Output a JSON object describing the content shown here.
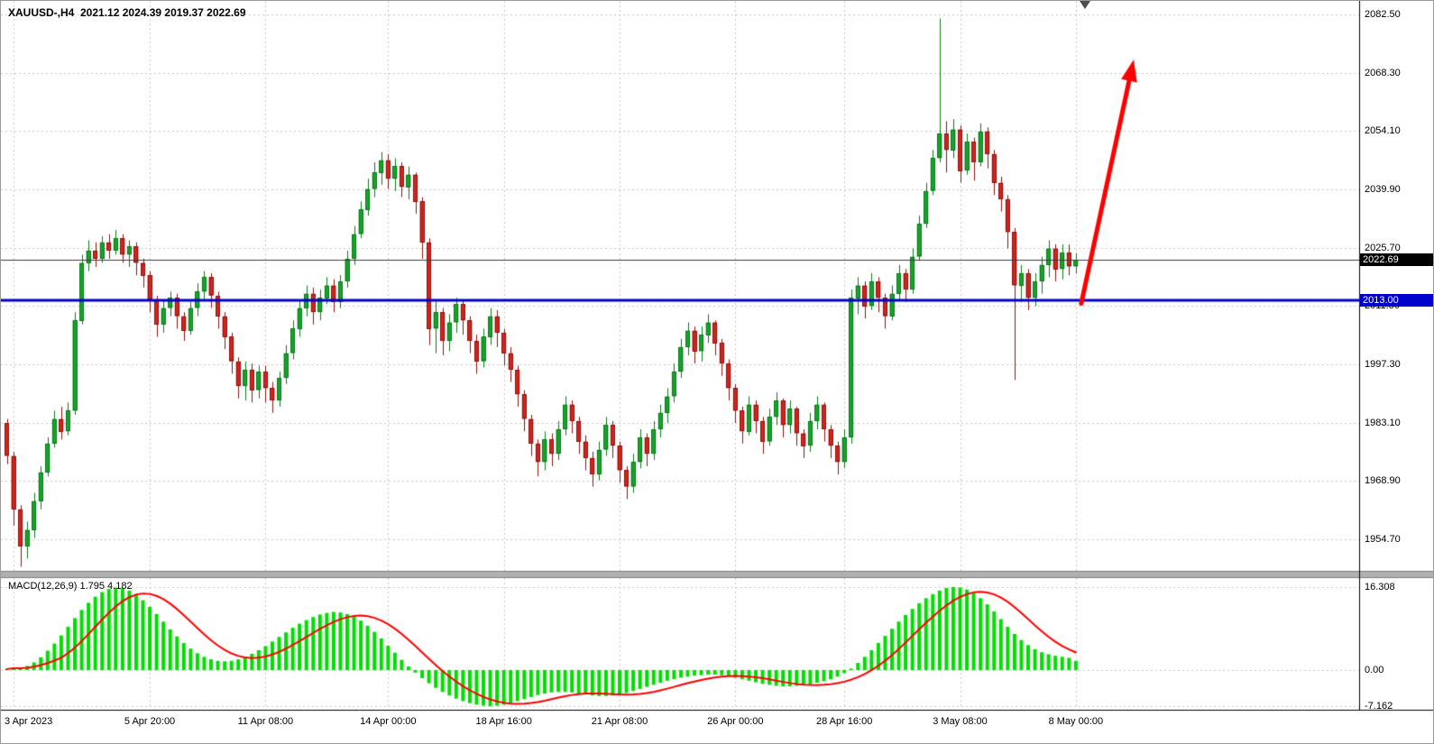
{
  "header": {
    "title_line": "XAUUSD-,H4  2021.12 2024.39 2019.37 2022.69"
  },
  "macd_panel": {
    "label": "MACD(12,26,9) 1.795 4.182"
  },
  "badges": {
    "current_price": "2022.69",
    "support_line": "2013.00"
  },
  "chart_data": [
    {
      "type": "candlestick",
      "symbol": "XAUUSD-",
      "timeframe": "H4",
      "title": "XAUUSD-,H4",
      "ohlc_display": {
        "open": 2021.12,
        "high": 2024.39,
        "low": 2019.37,
        "close": 2022.69
      },
      "y_axis": {
        "ticks": [
          2082.5,
          2068.3,
          2054.1,
          2039.9,
          2025.7,
          2011.5,
          1997.3,
          1983.1,
          1968.9,
          1954.7
        ],
        "grid": true
      },
      "x_axis": {
        "labels": [
          "3 Apr 2023",
          "5 Apr 20:00",
          "11 Apr 08:00",
          "14 Apr 00:00",
          "18 Apr 16:00",
          "21 Apr 08:00",
          "26 Apr 00:00",
          "28 Apr 16:00",
          "3 May 08:00",
          "8 May 00:00"
        ],
        "indices": [
          1,
          21,
          38,
          56,
          73,
          90,
          107,
          123,
          140,
          157
        ],
        "grid": true
      },
      "first_open": 1983.0,
      "bars_hlc": [
        [
          1984,
          1973,
          1975
        ],
        [
          1976,
          1958,
          1962
        ],
        [
          1963,
          1948,
          1953
        ],
        [
          1959,
          1950,
          1957
        ],
        [
          1966,
          1955,
          1964
        ],
        [
          1972.5,
          1962,
          1971
        ],
        [
          1979.5,
          1970,
          1978
        ],
        [
          1986,
          1977,
          1984
        ],
        [
          1987,
          1979,
          1981
        ],
        [
          1988,
          1980,
          1986
        ],
        [
          2010,
          1985,
          2008
        ],
        [
          2024,
          2007,
          2022
        ],
        [
          2027.5,
          2020,
          2025
        ],
        [
          2027,
          2021,
          2023
        ],
        [
          2028.5,
          2022,
          2027
        ],
        [
          2029,
          2023,
          2025
        ],
        [
          2030,
          2024,
          2028
        ],
        [
          2029,
          2022,
          2024
        ],
        [
          2027.5,
          2021,
          2026
        ],
        [
          2027,
          2019,
          2022
        ],
        [
          2023,
          2016,
          2019
        ],
        [
          2020,
          2010,
          2013
        ],
        [
          2014,
          2004,
          2007
        ],
        [
          2013,
          2005,
          2011
        ],
        [
          2015,
          2009,
          2013.5
        ],
        [
          2014.5,
          2006,
          2009
        ],
        [
          2010,
          2003,
          2005.5
        ],
        [
          2012.5,
          2004.5,
          2011
        ],
        [
          2017,
          2009,
          2015
        ],
        [
          2020,
          2013,
          2018.5
        ],
        [
          2019.5,
          2011,
          2014
        ],
        [
          2015,
          2006,
          2009
        ],
        [
          2010,
          2001,
          2004
        ],
        [
          2005,
          1995,
          1998
        ],
        [
          1999,
          1989,
          1992
        ],
        [
          1998,
          1988.5,
          1996
        ],
        [
          1997.5,
          1988,
          1991
        ],
        [
          1997,
          1989,
          1995.5
        ],
        [
          1997,
          1988,
          1991.5
        ],
        [
          1993,
          1985.5,
          1988.5
        ],
        [
          1995.5,
          1987,
          1994
        ],
        [
          2002,
          1992.5,
          2000
        ],
        [
          2008,
          1998.5,
          2006
        ],
        [
          2013,
          2004,
          2011
        ],
        [
          2016.5,
          2009,
          2014.5
        ],
        [
          2016,
          2007,
          2010
        ],
        [
          2015.5,
          2008,
          2013.5
        ],
        [
          2018.5,
          2012,
          2016.5
        ],
        [
          2018,
          2010,
          2012.5
        ],
        [
          2019,
          2011,
          2017.5
        ],
        [
          2025,
          2016,
          2023
        ],
        [
          2031,
          2021.5,
          2029
        ],
        [
          2037,
          2028,
          2035
        ],
        [
          2042.5,
          2033.5,
          2040
        ],
        [
          2046.5,
          2038,
          2044
        ],
        [
          2049,
          2041,
          2047
        ],
        [
          2048.5,
          2040,
          2042.5
        ],
        [
          2047.5,
          2039.5,
          2045.5
        ],
        [
          2046.5,
          2038,
          2040.5
        ],
        [
          2045.5,
          2037.5,
          2043.5
        ],
        [
          2044,
          2034,
          2037
        ],
        [
          2038,
          2023,
          2027
        ],
        [
          2028,
          2002,
          2006
        ],
        [
          2012.5,
          2000,
          2010
        ],
        [
          2011,
          1999.5,
          2003
        ],
        [
          2009.5,
          2000.5,
          2007.5
        ],
        [
          2013.5,
          2005,
          2012
        ],
        [
          2013,
          2004.5,
          2008
        ],
        [
          2009,
          2000,
          2003
        ],
        [
          2004.5,
          1995,
          1998
        ],
        [
          2006,
          1996.5,
          2004
        ],
        [
          2011,
          2002,
          2009
        ],
        [
          2010.5,
          2001.5,
          2005
        ],
        [
          2006,
          1997,
          2000
        ],
        [
          2001.5,
          1993,
          1996
        ],
        [
          1997,
          1987,
          1990
        ],
        [
          1991,
          1981,
          1984
        ],
        [
          1985,
          1975,
          1978
        ],
        [
          1979,
          1970,
          1973.5
        ],
        [
          1981,
          1971.5,
          1979
        ],
        [
          1980.5,
          1972.5,
          1975.5
        ],
        [
          1983.5,
          1974,
          1981.5
        ],
        [
          1989.5,
          1980,
          1987.5
        ],
        [
          1988.5,
          1980.5,
          1983.5
        ],
        [
          1984.5,
          1975.5,
          1978.5
        ],
        [
          1980,
          1971.5,
          1974.5
        ],
        [
          1976,
          1967.5,
          1970.5
        ],
        [
          1978.5,
          1969,
          1976.5
        ],
        [
          1984.5,
          1975,
          1982.5
        ],
        [
          1983.5,
          1974.5,
          1977.5
        ],
        [
          1978.5,
          1968.5,
          1971.5
        ],
        [
          1972.5,
          1964.5,
          1967.5
        ],
        [
          1975.5,
          1966,
          1973.5
        ],
        [
          1981.5,
          1972,
          1979.5
        ],
        [
          1980.5,
          1972.5,
          1975.5
        ],
        [
          1983.5,
          1974,
          1981.5
        ],
        [
          1987.5,
          1979.5,
          1985.5
        ],
        [
          1991.5,
          1983,
          1989.5
        ],
        [
          1997.5,
          1988,
          1995.5
        ],
        [
          2003.5,
          1994,
          2001.5
        ],
        [
          2007.5,
          1999.5,
          2005.5
        ],
        [
          2006.5,
          1997.5,
          2000.5
        ],
        [
          2006.5,
          1998,
          2004.5
        ],
        [
          2009.5,
          2002.5,
          2007.5
        ],
        [
          2008,
          1999.5,
          2002.5
        ],
        [
          2003.5,
          1994.5,
          1997.5
        ],
        [
          1998.5,
          1988.5,
          1991.5
        ],
        [
          1992.5,
          1983,
          1986
        ],
        [
          1987,
          1978,
          1981
        ],
        [
          1989.5,
          1980,
          1987.5
        ],
        [
          1988.5,
          1980.5,
          1983.5
        ],
        [
          1984.5,
          1975.5,
          1978.5
        ],
        [
          1986.5,
          1977.5,
          1984.5
        ],
        [
          1990.5,
          1982.5,
          1988.5
        ],
        [
          1989,
          1979.5,
          1982.5
        ],
        [
          1988.5,
          1980.5,
          1986.5
        ],
        [
          1987,
          1977.5,
          1980.5
        ],
        [
          1981.5,
          1974.5,
          1977.5
        ],
        [
          1985.5,
          1976,
          1983.5
        ],
        [
          1989.5,
          1981.5,
          1987.5
        ],
        [
          1988,
          1978.5,
          1981.5
        ],
        [
          1982.5,
          1974.5,
          1977.5
        ],
        [
          1978.5,
          1970.5,
          1973.5
        ],
        [
          1981.5,
          1972,
          1979.5
        ],
        [
          2015.5,
          1978,
          2013.5
        ],
        [
          2018.5,
          2009.5,
          2016.5
        ],
        [
          2017.5,
          2008.5,
          2011.5
        ],
        [
          2019.5,
          2010.5,
          2017.5
        ],
        [
          2018.5,
          2010,
          2013.5
        ],
        [
          2014.5,
          2006,
          2009
        ],
        [
          2016.5,
          2008,
          2014.5
        ],
        [
          2021.5,
          2013,
          2019.5
        ],
        [
          2020.5,
          2012.5,
          2015.5
        ],
        [
          2025.5,
          2014.5,
          2023.5
        ],
        [
          2033.5,
          2022.5,
          2031.5
        ],
        [
          2041.5,
          2030.5,
          2039.5
        ],
        [
          2049.5,
          2038.5,
          2047.5
        ],
        [
          2081.5,
          2046.5,
          2053.5
        ],
        [
          2056.5,
          2044,
          2049.5
        ],
        [
          2057,
          2047.5,
          2054.5
        ],
        [
          2055.5,
          2041.5,
          2044.5
        ],
        [
          2053.5,
          2043.5,
          2051.5
        ],
        [
          2052.5,
          2042,
          2046.5
        ],
        [
          2056,
          2045.5,
          2054
        ],
        [
          2055,
          2045,
          2048.5
        ],
        [
          2049.5,
          2038.5,
          2041.5
        ],
        [
          2043,
          2034.5,
          2037.5
        ],
        [
          2038.5,
          2025.5,
          2029.5
        ],
        [
          2030.5,
          1993.5,
          2016.5
        ],
        [
          2021.5,
          2012.5,
          2019.5
        ],
        [
          2020.5,
          2010.5,
          2013.5
        ],
        [
          2019.5,
          2011.5,
          2017.5
        ],
        [
          2023.5,
          2014.5,
          2021.5
        ],
        [
          2027.5,
          2018.5,
          2025.5
        ],
        [
          2026.5,
          2017.5,
          2020.5
        ],
        [
          2026.5,
          2018,
          2024.5
        ],
        [
          2026.5,
          2019,
          2021.12
        ],
        [
          2024.39,
          2019.37,
          2022.69
        ]
      ],
      "overlays": {
        "support_line": {
          "price": 2013.0,
          "label": "2013.00",
          "color": "#0000cc",
          "width": 3
        },
        "current_price_line": {
          "price": 2022.69,
          "label": "2022.69",
          "color": "#3c3c3c"
        },
        "trend_arrow": {
          "from": {
            "bar": 157,
            "price": 2013.0
          },
          "to": {
            "bar": 165.5,
            "price": 2071.5
          },
          "color": "#ff0000"
        }
      },
      "colors": {
        "up": "#17a32b",
        "up_border": "#0a7a1a",
        "down": "#d2231d",
        "down_border": "#8f1310",
        "grid": "#c9c9c9",
        "background": "#ffffff",
        "axis_line": "#000000"
      }
    },
    {
      "type": "bar",
      "name": "MACD",
      "params": "12,26,9",
      "value_main": 1.795,
      "value_signal": 4.182,
      "y_axis": {
        "ticks": [
          16.308,
          0,
          -7.162
        ],
        "labels": [
          "16.308",
          "0.00",
          "-7.162"
        ],
        "grid": true
      },
      "histogram": [
        0.2,
        0.5,
        0.3,
        0.8,
        1.5,
        2.5,
        3.8,
        5.2,
        6.8,
        8.5,
        10.2,
        11.8,
        13.2,
        14.4,
        15.3,
        15.9,
        16.2,
        16.1,
        15.6,
        14.8,
        13.7,
        12.4,
        11.0,
        9.5,
        8.0,
        6.6,
        5.3,
        4.2,
        3.3,
        2.6,
        2.1,
        1.8,
        1.7,
        1.8,
        2.1,
        2.6,
        3.2,
        3.9,
        4.7,
        5.6,
        6.5,
        7.4,
        8.3,
        9.1,
        9.8,
        10.4,
        10.9,
        11.2,
        11.4,
        11.3,
        11.0,
        10.5,
        9.7,
        8.7,
        7.5,
        6.2,
        4.8,
        3.4,
        2.0,
        0.7,
        -0.5,
        -1.6,
        -2.6,
        -3.5,
        -4.3,
        -5.0,
        -5.6,
        -6.1,
        -6.5,
        -6.8,
        -7.0,
        -7.1,
        -7.0,
        -6.8,
        -6.5,
        -6.1,
        -5.7,
        -5.3,
        -4.9,
        -4.6,
        -4.4,
        -4.3,
        -4.3,
        -4.4,
        -4.6,
        -4.8,
        -5.0,
        -5.1,
        -5.1,
        -5.0,
        -4.8,
        -4.5,
        -4.1,
        -3.7,
        -3.3,
        -2.9,
        -2.5,
        -2.1,
        -1.8,
        -1.5,
        -1.3,
        -1.1,
        -1.0,
        -0.9,
        -0.9,
        -1.0,
        -1.2,
        -1.5,
        -1.8,
        -2.1,
        -2.4,
        -2.7,
        -2.9,
        -3.1,
        -3.2,
        -3.2,
        -3.1,
        -3.0,
        -2.8,
        -2.5,
        -2.2,
        -1.8,
        -1.3,
        -0.6,
        0.3,
        1.4,
        2.6,
        3.9,
        5.3,
        6.7,
        8.1,
        9.5,
        10.8,
        12.0,
        13.1,
        14.1,
        14.9,
        15.6,
        16.1,
        16.3,
        16.2,
        15.8,
        15.1,
        14.1,
        12.9,
        11.5,
        10.0,
        8.5,
        7.1,
        5.9,
        4.9,
        4.1,
        3.5,
        3.1,
        2.8,
        2.6,
        2.4,
        1.795
      ],
      "signal_sma_period": 9,
      "colors": {
        "histogram": "#00df00",
        "signal": "#ff0000"
      }
    }
  ]
}
